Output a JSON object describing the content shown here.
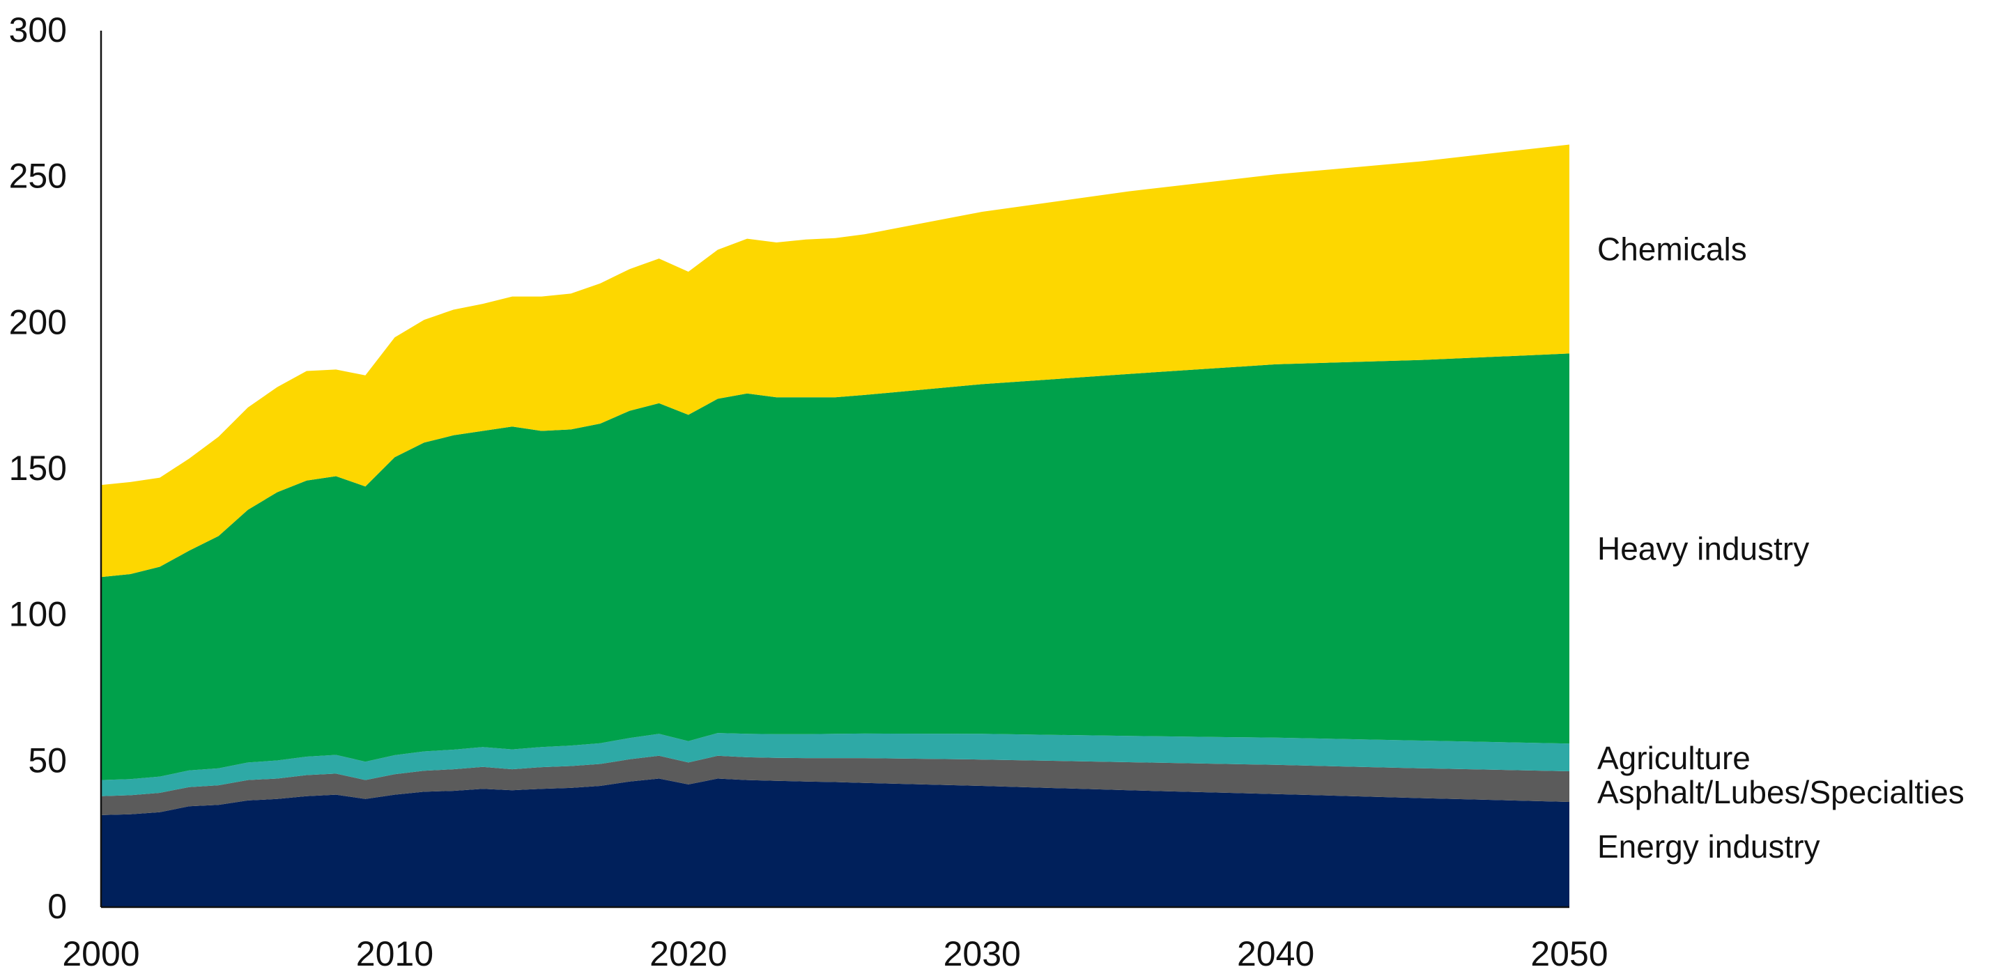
{
  "chart_data": {
    "type": "area",
    "stacked": true,
    "title": "",
    "xlabel": "",
    "ylabel": "",
    "xlim": [
      2000,
      2050
    ],
    "ylim": [
      0,
      300
    ],
    "x_ticks": [
      2000,
      2010,
      2020,
      2030,
      2040,
      2050
    ],
    "y_ticks": [
      0,
      50,
      100,
      150,
      200,
      250,
      300
    ],
    "grid": false,
    "legend": "inline labels at right edge",
    "x": [
      2000,
      2001,
      2002,
      2003,
      2004,
      2005,
      2006,
      2007,
      2008,
      2009,
      2010,
      2011,
      2012,
      2013,
      2014,
      2015,
      2016,
      2017,
      2018,
      2019,
      2020,
      2021,
      2022,
      2023,
      2024,
      2025,
      2026,
      2030,
      2035,
      2040,
      2045,
      2050
    ],
    "series": [
      {
        "name": "Energy industry",
        "color": "#00205b",
        "values": [
          31.5,
          31.8,
          32.5,
          34.5,
          35,
          36.5,
          37,
          38,
          38.5,
          37,
          38.5,
          39.5,
          39.8,
          40.5,
          40,
          40.5,
          40.8,
          41.5,
          43,
          44,
          42,
          44,
          43.5,
          43.2,
          43,
          42.8,
          42.5,
          41.5,
          40,
          38.7,
          37.3,
          36
        ]
      },
      {
        "name": "Asphalt/Lubes/Specialties",
        "color": "#5b5b5b",
        "values": [
          6.5,
          6.5,
          6.6,
          6.6,
          6.7,
          7,
          7,
          7.2,
          7.2,
          6.5,
          7,
          7.2,
          7.4,
          7.5,
          7.2,
          7.4,
          7.5,
          7.5,
          7.6,
          7.8,
          7.5,
          7.8,
          7.8,
          7.9,
          8,
          8.2,
          8.5,
          9,
          9.6,
          10,
          10.2,
          10.5
        ]
      },
      {
        "name": "Agriculture",
        "color": "#2ea9a6",
        "values": [
          5.5,
          5.5,
          5.6,
          5.7,
          5.8,
          6,
          6.2,
          6.3,
          6.4,
          6.3,
          6.5,
          6.6,
          6.7,
          6.8,
          6.8,
          6.9,
          7,
          7.1,
          7.3,
          7.5,
          7.3,
          7.8,
          8,
          8.1,
          8.2,
          8.3,
          8.4,
          8.8,
          9,
          9.3,
          9.5,
          9.5
        ]
      },
      {
        "name": "Heavy industry",
        "color": "#00a14b",
        "values": [
          69.5,
          70.2,
          71.8,
          75.2,
          79.5,
          86.5,
          91.8,
          94.5,
          95.4,
          94.2,
          102,
          105.7,
          107.6,
          108.2,
          110.5,
          108.2,
          108.2,
          109.4,
          112,
          113.2,
          111.7,
          114.4,
          116.5,
          115.3,
          115.3,
          115.2,
          115.9,
          119.7,
          123.9,
          127.8,
          130.3,
          133.5
        ]
      },
      {
        "name": "Chemicals",
        "color": "#fdd700",
        "values": [
          31.5,
          31.5,
          30.5,
          31.5,
          34,
          35,
          36,
          37.5,
          36.5,
          38,
          41,
          42,
          43,
          43.5,
          44.5,
          46,
          46.5,
          48,
          48.5,
          49.5,
          49,
          51,
          53,
          53,
          54,
          54.5,
          55,
          59,
          62.5,
          65,
          68,
          71.5
        ]
      }
    ]
  }
}
